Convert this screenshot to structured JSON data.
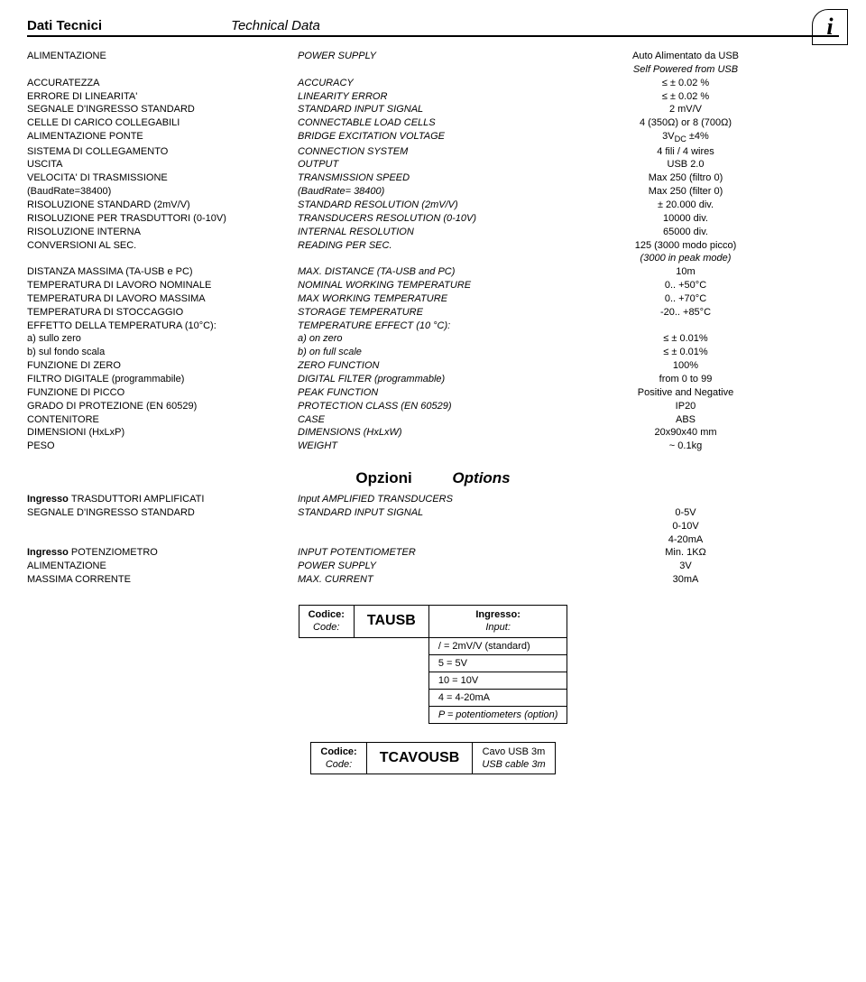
{
  "header": {
    "title_it": "Dati Tecnici",
    "title_en": "Technical Data",
    "info_glyph": "i"
  },
  "specs": [
    {
      "it": "ALIMENTAZIONE",
      "en": "POWER SUPPLY",
      "val": "Auto Alimentato da USB"
    },
    {
      "it": "",
      "en": "",
      "val_it": "Self Powered from USB",
      "val_italic": true
    },
    {
      "it": "ACCURATEZZA",
      "en": "ACCURACY",
      "val": "≤ ± 0.02 %"
    },
    {
      "it": "ERRORE DI LINEARITA'",
      "en": "LINEARITY ERROR",
      "val": "≤ ± 0.02 %"
    },
    {
      "it": "SEGNALE D'INGRESSO STANDARD",
      "en": "STANDARD INPUT SIGNAL",
      "val": "2 mV/V"
    },
    {
      "it": "CELLE DI CARICO COLLEGABILI",
      "en": "CONNECTABLE LOAD CELLS",
      "val": "4 (350Ω) or 8 (700Ω)"
    },
    {
      "it": "ALIMENTAZIONE PONTE",
      "en": "BRIDGE EXCITATION VOLTAGE",
      "val_html": "3V<sub>DC</sub> ±4%"
    },
    {
      "it": "SISTEMA DI COLLEGAMENTO",
      "en": "CONNECTION SYSTEM",
      "val": "4 fili / 4 wires"
    },
    {
      "it": "USCITA",
      "en": "OUTPUT",
      "val": "USB 2.0"
    },
    {
      "it": "VELOCITA' DI TRASMISSIONE",
      "en": "TRANSMISSION SPEED",
      "val": "Max 250  (filtro 0)"
    },
    {
      "it": "(BaudRate=38400)",
      "en": "(BaudRate= 38400)",
      "val": "Max 250  (filter 0)"
    },
    {
      "it": "RISOLUZIONE STANDARD (2mV/V)",
      "en": "STANDARD RESOLUTION (2mV/V)",
      "val": "± 20.000 div."
    },
    {
      "it": "RISOLUZIONE PER TRASDUTTORI (0-10V)",
      "en": "TRANSDUCERS RESOLUTION (0-10V)",
      "val": "10000 div."
    },
    {
      "it": "RISOLUZIONE INTERNA",
      "en": "INTERNAL RESOLUTION",
      "val": "65000 div."
    },
    {
      "it": "CONVERSIONI AL SEC.",
      "en": "READING PER SEC.",
      "val": "125 (3000 modo picco)"
    },
    {
      "it": "",
      "en": "",
      "val_it": "(3000 in peak mode)",
      "val_italic": true
    },
    {
      "it": "DISTANZA MASSIMA (TA-USB e PC)",
      "en": "MAX. DISTANCE (TA-USB and PC)",
      "val": "10m"
    },
    {
      "it": "TEMPERATURA DI LAVORO NOMINALE",
      "en": "NOMINAL WORKING TEMPERATURE",
      "val": "0.. +50°C"
    },
    {
      "it": "TEMPERATURA DI LAVORO MASSIMA",
      "en": "MAX WORKING TEMPERATURE",
      "val": "0.. +70°C"
    },
    {
      "it": "TEMPERATURA DI STOCCAGGIO",
      "en": "STORAGE TEMPERATURE",
      "val": "-20.. +85°C"
    },
    {
      "it": "EFFETTO DELLA TEMPERATURA (10°C):",
      "en": "TEMPERATURE EFFECT (10 °C):",
      "val": ""
    },
    {
      "it": "a) sullo zero",
      "en": "a) on zero",
      "val": "≤ ± 0.01%"
    },
    {
      "it": "b) sul fondo scala",
      "en": "b) on full scale",
      "val": "≤ ± 0.01%"
    },
    {
      "it": "FUNZIONE DI ZERO",
      "en": "ZERO FUNCTION",
      "val": "100%"
    },
    {
      "it": "FILTRO DIGITALE (programmabile)",
      "en": "DIGITAL FILTER (programmable)",
      "val": "from 0 to 99"
    },
    {
      "it": "FUNZIONE DI PICCO",
      "en": "PEAK FUNCTION",
      "val": "Positive and Negative"
    },
    {
      "it": "GRADO DI PROTEZIONE (EN 60529)",
      "en": "PROTECTION CLASS (EN 60529)",
      "val": "IP20"
    },
    {
      "it": "CONTENITORE",
      "en": "CASE",
      "val": "ABS"
    },
    {
      "it": "DIMENSIONI (HxLxP)",
      "en": "DIMENSIONS (HxLxW)",
      "val": "20x90x40 mm"
    },
    {
      "it": "PESO",
      "en": "WEIGHT",
      "val": "~ 0.1kg"
    }
  ],
  "opzioni_header": {
    "it": "Opzioni",
    "en": "Options"
  },
  "opzioni": [
    {
      "it": "Ingresso TRASDUTTORI AMPLIFICATI",
      "en": "Input AMPLIFIED TRANSDUCERS",
      "val": "",
      "it_bold": true
    },
    {
      "it": "SEGNALE D'INGRESSO STANDARD",
      "en": "STANDARD INPUT SIGNAL",
      "val": "0-5V"
    },
    {
      "it": "",
      "en": "",
      "val": "0-10V"
    },
    {
      "it": "",
      "en": "",
      "val": "4-20mA"
    },
    {
      "it": "Ingresso POTENZIOMETRO",
      "en": "INPUT POTENTIOMETER",
      "val": "Min. 1KΩ",
      "it_bold": true
    },
    {
      "it": "ALIMENTAZIONE",
      "en": "POWER SUPPLY",
      "val": "3V"
    },
    {
      "it": "MASSIMA CORRENTE",
      "en": "MAX. CURRENT",
      "val": "30mA"
    }
  ],
  "code1": {
    "codice_it": "Codice:",
    "codice_en": "Code:",
    "value": "TAUSB",
    "ingresso_it": "Ingresso:",
    "ingresso_en": "Input:",
    "options": [
      "/ = 2mV/V (standard)",
      "5 = 5V",
      "10 = 10V",
      "4 = 4-20mA",
      "P = potentiometers (option)"
    ]
  },
  "code2": {
    "codice_it": "Codice:",
    "codice_en": "Code:",
    "value": "TCAVOUSB",
    "desc_it": "Cavo USB 3m",
    "desc_en": "USB cable 3m"
  }
}
